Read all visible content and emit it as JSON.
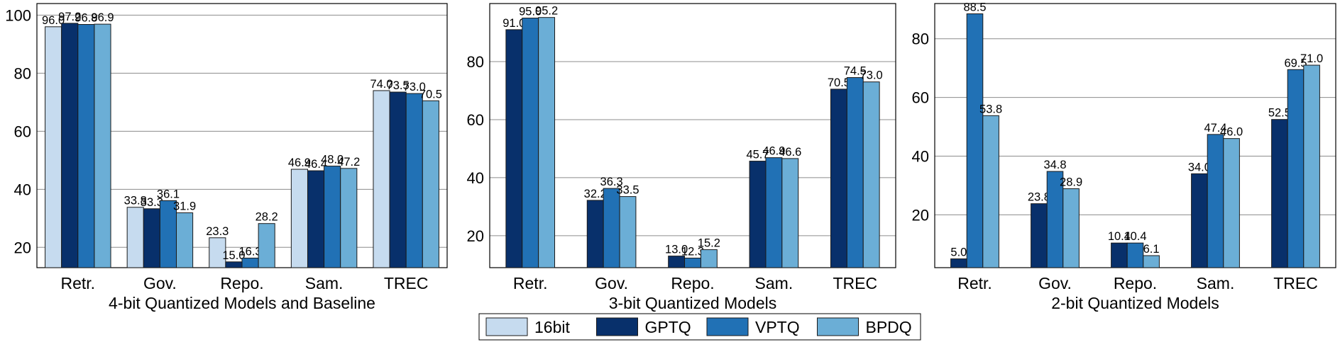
{
  "legend": {
    "items": [
      {
        "label": "16bit",
        "color": "#c6dbef"
      },
      {
        "label": "GPTQ",
        "color": "#08306b"
      },
      {
        "label": "VPTQ",
        "color": "#2171b5"
      },
      {
        "label": "BPDQ",
        "color": "#6baed6"
      }
    ]
  },
  "chart_data": [
    {
      "type": "bar",
      "xlabel": "4-bit Quantized Models and Baseline",
      "ylabel": "",
      "categories": [
        "Retr.",
        "Gov.",
        "Repo.",
        "Sam.",
        "TREC"
      ],
      "ylim": [
        13,
        104
      ],
      "yticks": [
        20,
        40,
        60,
        80,
        100
      ],
      "grid": true,
      "series": [
        {
          "name": "16bit",
          "color": "#c6dbef",
          "values": [
            96.0,
            33.8,
            23.3,
            46.9,
            74.0
          ]
        },
        {
          "name": "GPTQ",
          "color": "#08306b",
          "values": [
            97.2,
            33.3,
            15.0,
            46.4,
            73.5
          ]
        },
        {
          "name": "VPTQ",
          "color": "#2171b5",
          "values": [
            96.8,
            36.1,
            16.3,
            48.0,
            73.0
          ]
        },
        {
          "name": "BPDQ",
          "color": "#6baed6",
          "values": [
            96.9,
            31.9,
            28.2,
            47.2,
            70.5
          ]
        }
      ]
    },
    {
      "type": "bar",
      "xlabel": "3-bit Quantized Models",
      "ylabel": "",
      "categories": [
        "Retr.",
        "Gov.",
        "Repo.",
        "Sam.",
        "TREC"
      ],
      "ylim": [
        9,
        100
      ],
      "yticks": [
        20,
        40,
        60,
        80
      ],
      "grid": true,
      "series": [
        {
          "name": "GPTQ",
          "color": "#08306b",
          "values": [
            91.0,
            32.2,
            13.0,
            45.7,
            70.5
          ]
        },
        {
          "name": "VPTQ",
          "color": "#2171b5",
          "values": [
            95.0,
            36.3,
            12.3,
            46.9,
            74.5
          ]
        },
        {
          "name": "BPDQ",
          "color": "#6baed6",
          "values": [
            95.2,
            33.5,
            15.2,
            46.6,
            73.0
          ]
        }
      ]
    },
    {
      "type": "bar",
      "xlabel": "2-bit Quantized Models",
      "ylabel": "",
      "categories": [
        "Retr.",
        "Gov.",
        "Repo.",
        "Sam.",
        "TREC"
      ],
      "ylim": [
        2,
        92
      ],
      "yticks": [
        20,
        40,
        60,
        80
      ],
      "grid": true,
      "series": [
        {
          "name": "GPTQ",
          "color": "#08306b",
          "values": [
            5.0,
            23.8,
            10.4,
            34.0,
            52.5
          ]
        },
        {
          "name": "VPTQ",
          "color": "#2171b5",
          "values": [
            88.5,
            34.8,
            10.4,
            47.4,
            69.5
          ]
        },
        {
          "name": "BPDQ",
          "color": "#6baed6",
          "values": [
            53.8,
            28.9,
            6.1,
            46.0,
            71.0
          ]
        }
      ]
    }
  ]
}
